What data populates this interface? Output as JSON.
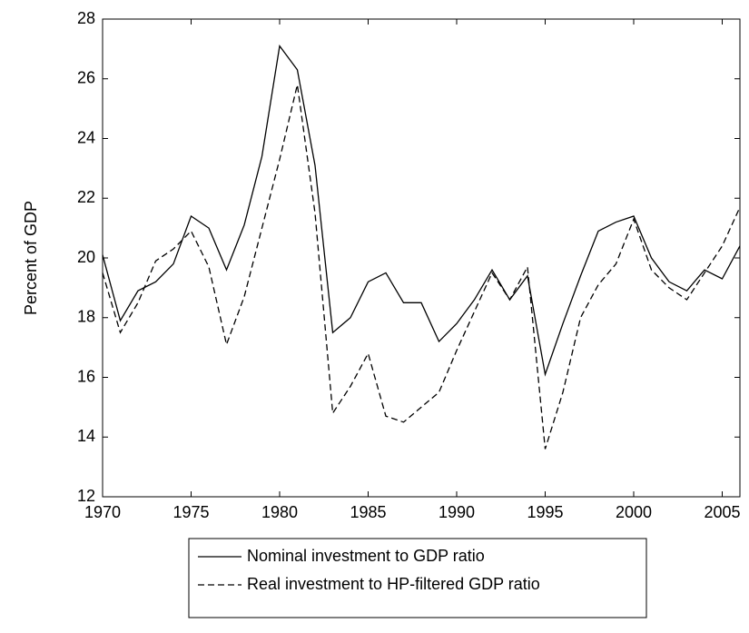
{
  "chart_data": {
    "type": "line",
    "y_label": "Percent of GDP",
    "x": [
      1970,
      1971,
      1972,
      1973,
      1974,
      1975,
      1976,
      1977,
      1978,
      1979,
      1980,
      1981,
      1982,
      1983,
      1984,
      1985,
      1986,
      1987,
      1988,
      1989,
      1990,
      1991,
      1992,
      1993,
      1994,
      1995,
      1996,
      1997,
      1998,
      1999,
      2000,
      2001,
      2002,
      2003,
      2004,
      2005,
      2006
    ],
    "series": [
      {
        "name": "Nominal investment to GDP ratio",
        "color": "#000000",
        "line_style": "solid",
        "values": [
          20.1,
          17.9,
          18.9,
          19.2,
          19.8,
          21.4,
          21.0,
          19.6,
          21.1,
          23.4,
          27.1,
          26.3,
          23.1,
          17.5,
          18.0,
          19.2,
          19.5,
          18.5,
          18.5,
          17.2,
          17.8,
          18.6,
          19.6,
          18.6,
          19.4,
          16.1,
          17.8,
          19.4,
          20.9,
          21.2,
          21.4,
          20.0,
          19.2,
          18.9,
          19.6,
          19.3,
          20.4
        ]
      },
      {
        "name": "Real investment to HP-filtered GDP ratio",
        "color": "#000000",
        "line_style": "dashed",
        "values": [
          19.5,
          17.5,
          18.5,
          19.9,
          20.3,
          20.9,
          19.7,
          17.1,
          18.7,
          21.0,
          23.3,
          25.8,
          21.5,
          14.8,
          15.7,
          16.8,
          14.7,
          14.5,
          15.0,
          15.5,
          16.9,
          18.2,
          19.5,
          18.6,
          19.7,
          13.6,
          15.5,
          18.0,
          19.1,
          19.8,
          21.3,
          19.6,
          19.0,
          18.6,
          19.5,
          20.4,
          21.7
        ]
      }
    ],
    "xlim": [
      1970,
      2006
    ],
    "xticks": [
      1970,
      1975,
      1980,
      1985,
      1990,
      1995,
      2000,
      2005
    ],
    "ylim": [
      12,
      28
    ],
    "yticks": [
      12,
      14,
      16,
      18,
      20,
      22,
      24,
      26,
      28
    ],
    "legend": "bottom"
  }
}
